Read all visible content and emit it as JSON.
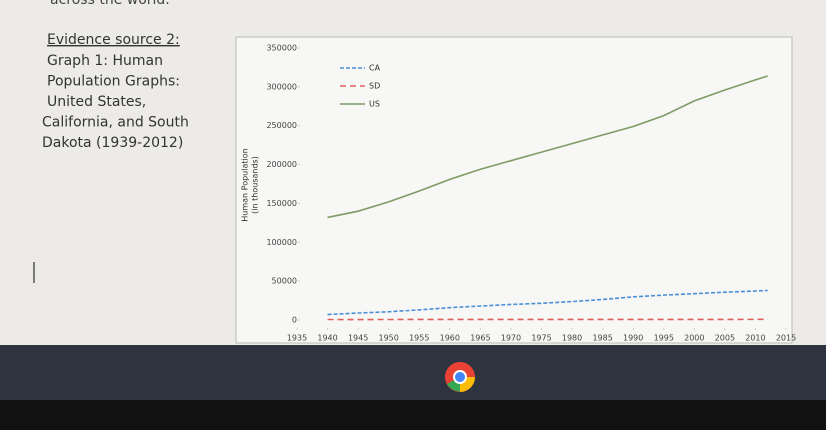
{
  "top_text": "across the world.",
  "evidence": {
    "heading": "Evidence source 2:",
    "lines": [
      "Graph 1: Human",
      "Population Graphs:",
      "United States,",
      "California, and South",
      "Dakota (1939-2012)"
    ]
  },
  "chart_data": {
    "type": "line",
    "y_label": [
      "Human Population",
      "(in thousands)"
    ],
    "x": [
      1940,
      1945,
      1950,
      1955,
      1960,
      1965,
      1970,
      1975,
      1980,
      1985,
      1990,
      1995,
      2000,
      2005,
      2010,
      2012
    ],
    "series": [
      {
        "name": "CA",
        "color": "#4a8fd6",
        "dash": "4 2",
        "values": [
          7000,
          9000,
          10600,
          13000,
          15900,
          18000,
          20000,
          21500,
          23700,
          26400,
          29800,
          32000,
          33900,
          35800,
          37300,
          38000
        ]
      },
      {
        "name": "SD",
        "color": "#e0605a",
        "dash": "6 4",
        "values": [
          640,
          590,
          650,
          680,
          680,
          680,
          670,
          690,
          690,
          700,
          700,
          720,
          750,
          770,
          810,
          830
        ]
      },
      {
        "name": "US",
        "color": "#7e9c66",
        "dash": "none",
        "values": [
          132000,
          140000,
          152000,
          166000,
          181000,
          194000,
          205000,
          216000,
          227000,
          238000,
          249000,
          263000,
          282000,
          296000,
          309000,
          314000
        ]
      }
    ],
    "xlim": [
      1935,
      2015
    ],
    "xticks": [
      1935,
      1940,
      1945,
      1950,
      1955,
      1960,
      1965,
      1970,
      1975,
      1980,
      1985,
      1990,
      1995,
      2000,
      2005,
      2010,
      2015
    ],
    "ylim": [
      0,
      350000
    ],
    "yticks": [
      0,
      50000,
      100000,
      150000,
      200000,
      250000,
      300000,
      350000
    ],
    "legend": "upper left"
  }
}
